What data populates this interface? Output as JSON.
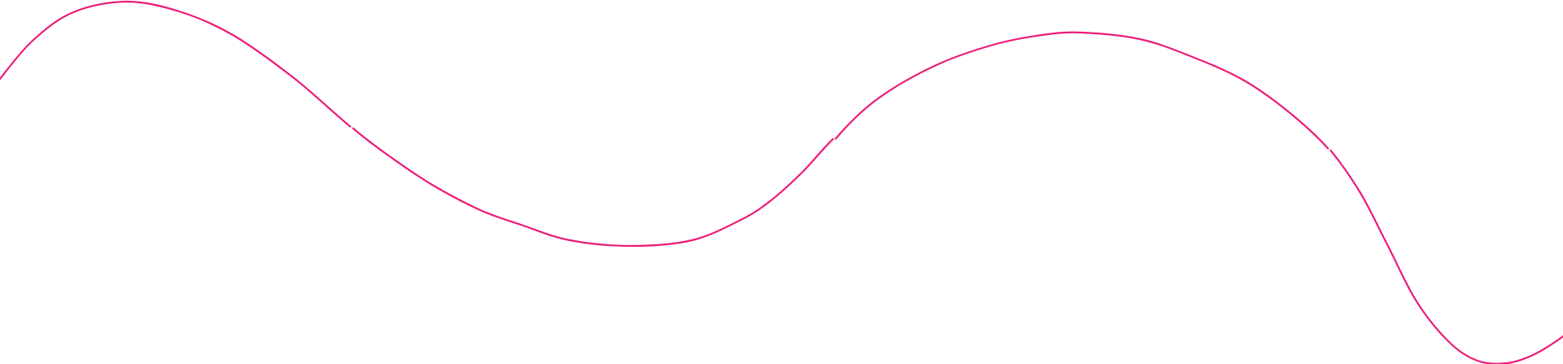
{
  "decoration": {
    "curve_color": "#ec1a7a",
    "background_color": "#ffffff"
  }
}
